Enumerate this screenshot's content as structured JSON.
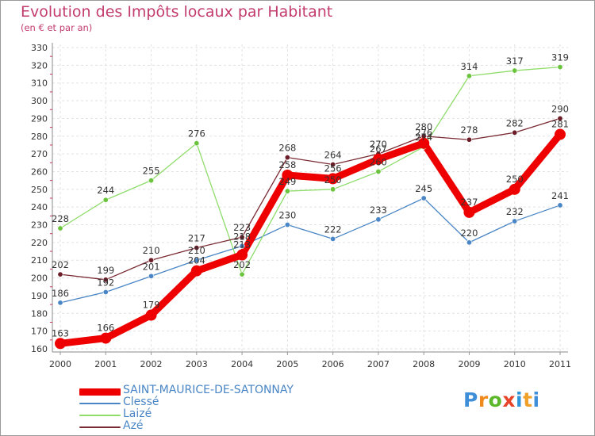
{
  "title": "Evolution des Impôts locaux par Habitant",
  "subtitle": "(en € et par an)",
  "logo": {
    "letters": [
      "P",
      "r",
      "o",
      "x",
      "i",
      "t",
      "i"
    ],
    "colors": [
      "#3e8ed8",
      "#f08a1c",
      "#5cb82a",
      "#e8442a",
      "#2f95d9",
      "#f0a12a",
      "#3e8ed8"
    ]
  },
  "chart_data": {
    "type": "line",
    "categories": [
      "2000",
      "2001",
      "2002",
      "2003",
      "2004",
      "2005",
      "2006",
      "2007",
      "2008",
      "2009",
      "2010",
      "2011"
    ],
    "ylim": [
      160,
      330
    ],
    "yticks": [
      160,
      170,
      180,
      190,
      200,
      210,
      220,
      230,
      240,
      250,
      260,
      270,
      280,
      290,
      300,
      310,
      320,
      330
    ],
    "series": [
      {
        "name": "Clessé",
        "color": "#4a86c5",
        "marker": "#4a86c5",
        "values": [
          186,
          192,
          201,
          210,
          218,
          230,
          222,
          233,
          245,
          220,
          232,
          241
        ]
      },
      {
        "name": "Laizé",
        "color": "#8fdc6b",
        "marker": "#6cc43e",
        "values": [
          228,
          244,
          255,
          276,
          202,
          249,
          250,
          260,
          274,
          314,
          317,
          319
        ]
      },
      {
        "name": "Azé",
        "color": "#7a2a32",
        "marker": "#6b1d28",
        "values": [
          202,
          199,
          210,
          217,
          223,
          268,
          264,
          270,
          280,
          278,
          282,
          290
        ]
      },
      {
        "name": "SAINT-MAURICE-DE-SATONNAY",
        "color": "#ee0000",
        "marker": "#ee0000",
        "values": [
          163,
          166,
          179,
          204,
          213,
          258,
          256,
          267,
          276,
          237,
          250,
          281
        ],
        "bold": true
      }
    ],
    "labels": {
      "Clessé": [
        "186",
        "192",
        "201",
        "210",
        "218",
        "230",
        "222",
        "233",
        "245",
        "220",
        "232",
        "241"
      ],
      "Laizé": [
        "228",
        "244",
        "255",
        "276",
        "202",
        "249",
        "250",
        "260",
        "274",
        "314",
        "317",
        "319"
      ],
      "Azé": [
        "202",
        "199",
        "210",
        "217",
        "223",
        "268",
        "264",
        "270",
        "280",
        "278",
        "282",
        "290"
      ],
      "SAINT-MAURICE-DE-SATONNAY": [
        "163",
        "166",
        "179",
        "204",
        "213",
        "258",
        "256",
        "267",
        "276",
        "237",
        "250",
        "281"
      ]
    },
    "legend": [
      "SAINT-MAURICE-DE-SATONNAY",
      "Clessé",
      "Laizé",
      "Azé"
    ]
  }
}
